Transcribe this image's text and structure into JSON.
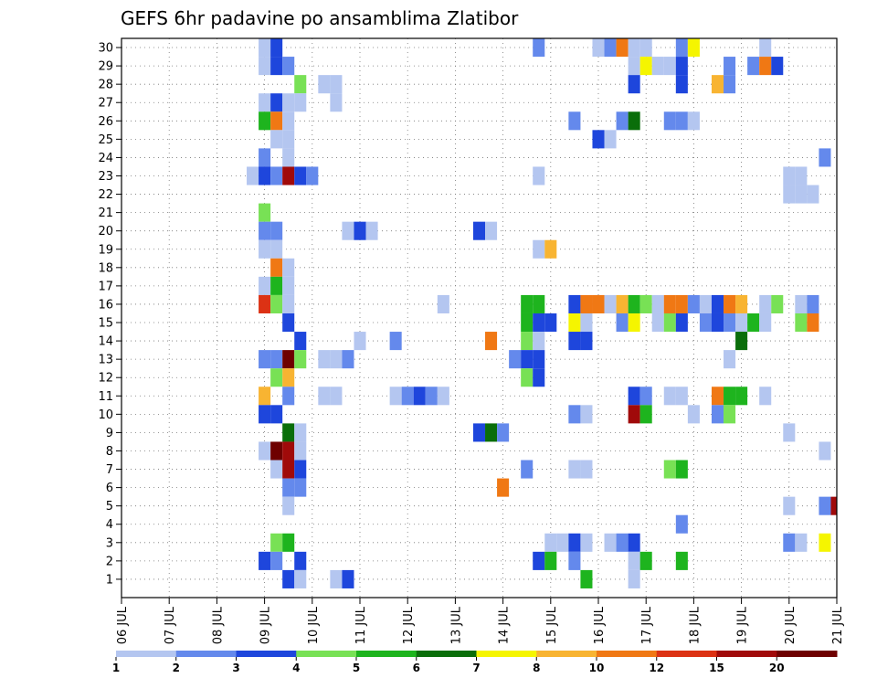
{
  "chart_data": {
    "type": "heatmap",
    "title": "GEFS 6hr padavine po ansamblima Zlatibor",
    "xlabel": "",
    "ylabel": "",
    "x_tick_labels": [
      "06 JUL",
      "07 JUL",
      "08 JUL",
      "09 JUL",
      "10 JUL",
      "11 JUL",
      "12 JUL",
      "13 JUL",
      "14 JUL",
      "15 JUL",
      "16 JUL",
      "17 JUL",
      "18 JUL",
      "19 JUL",
      "20 JUL",
      "21 JUL"
    ],
    "y_tick_labels": [
      "1",
      "2",
      "3",
      "4",
      "5",
      "6",
      "7",
      "8",
      "9",
      "10",
      "11",
      "12",
      "13",
      "14",
      "15",
      "16",
      "17",
      "18",
      "19",
      "20",
      "21",
      "22",
      "23",
      "24",
      "25",
      "26",
      "27",
      "28",
      "29",
      "30"
    ],
    "xlim_steps": [
      0,
      60
    ],
    "ylim": [
      0,
      30.5
    ],
    "grid": "dotted",
    "colorbar": {
      "labels": [
        "1",
        "2",
        "3",
        "4",
        "5",
        "6",
        "7",
        "8",
        "10",
        "12",
        "15",
        "20"
      ],
      "colors": [
        "#b4c6f0",
        "#6489ec",
        "#1e46dc",
        "#78e155",
        "#1eb41e",
        "#0a6e0a",
        "#f5f500",
        "#f8b432",
        "#f07814",
        "#dc3214",
        "#a00a0a",
        "#6e0000"
      ]
    },
    "columns_note": "each cell: [member_row, six_hour_step_from_06JUL_00z, class_index 1-12]",
    "cells": [
      [
        30,
        12,
        1
      ],
      [
        30,
        13,
        3
      ],
      [
        30,
        35,
        2
      ],
      [
        30,
        40,
        1
      ],
      [
        30,
        41,
        2
      ],
      [
        30,
        42,
        9
      ],
      [
        30,
        43,
        1
      ],
      [
        30,
        44,
        1
      ],
      [
        30,
        47,
        2
      ],
      [
        30,
        48,
        7
      ],
      [
        30,
        54,
        1
      ],
      [
        29,
        12,
        1
      ],
      [
        29,
        13,
        3
      ],
      [
        29,
        14,
        2
      ],
      [
        29,
        43,
        1
      ],
      [
        29,
        44,
        7
      ],
      [
        29,
        45,
        1
      ],
      [
        29,
        46,
        1
      ],
      [
        29,
        47,
        3
      ],
      [
        29,
        51,
        2
      ],
      [
        29,
        53,
        2
      ],
      [
        29,
        54,
        9
      ],
      [
        29,
        55,
        3
      ],
      [
        28,
        15,
        4
      ],
      [
        28,
        17,
        1
      ],
      [
        28,
        18,
        1
      ],
      [
        28,
        43,
        3
      ],
      [
        28,
        47,
        3
      ],
      [
        28,
        50,
        8
      ],
      [
        28,
        51,
        2
      ],
      [
        27,
        12,
        1
      ],
      [
        27,
        13,
        3
      ],
      [
        27,
        14,
        1
      ],
      [
        27,
        15,
        1
      ],
      [
        27,
        18,
        1
      ],
      [
        26,
        12,
        5
      ],
      [
        26,
        13,
        9
      ],
      [
        26,
        14,
        1
      ],
      [
        26,
        38,
        2
      ],
      [
        26,
        42,
        2
      ],
      [
        26,
        43,
        6
      ],
      [
        26,
        46,
        2
      ],
      [
        26,
        47,
        2
      ],
      [
        26,
        48,
        1
      ],
      [
        25,
        13,
        1
      ],
      [
        25,
        14,
        1
      ],
      [
        25,
        40,
        3
      ],
      [
        25,
        41,
        1
      ],
      [
        24,
        12,
        2
      ],
      [
        24,
        14,
        1
      ],
      [
        24,
        59,
        2
      ],
      [
        23,
        11,
        1
      ],
      [
        23,
        12,
        3
      ],
      [
        23,
        13,
        2
      ],
      [
        23,
        14,
        11
      ],
      [
        23,
        15,
        3
      ],
      [
        23,
        16,
        2
      ],
      [
        23,
        35,
        1
      ],
      [
        23,
        56,
        1
      ],
      [
        23,
        57,
        1
      ],
      [
        22,
        56,
        1
      ],
      [
        22,
        57,
        1
      ],
      [
        22,
        58,
        1
      ],
      [
        21,
        12,
        4
      ],
      [
        20,
        12,
        2
      ],
      [
        20,
        13,
        2
      ],
      [
        20,
        19,
        1
      ],
      [
        20,
        20,
        3
      ],
      [
        20,
        21,
        1
      ],
      [
        20,
        30,
        3
      ],
      [
        20,
        31,
        1
      ],
      [
        19,
        12,
        1
      ],
      [
        19,
        13,
        1
      ],
      [
        19,
        35,
        1
      ],
      [
        19,
        36,
        8
      ],
      [
        18,
        13,
        9
      ],
      [
        18,
        14,
        1
      ],
      [
        17,
        12,
        1
      ],
      [
        17,
        13,
        5
      ],
      [
        17,
        14,
        1
      ],
      [
        16,
        12,
        10
      ],
      [
        16,
        13,
        4
      ],
      [
        16,
        14,
        1
      ],
      [
        16,
        27,
        1
      ],
      [
        16,
        34,
        5
      ],
      [
        16,
        35,
        5
      ],
      [
        16,
        38,
        3
      ],
      [
        16,
        39,
        9
      ],
      [
        16,
        40,
        9
      ],
      [
        16,
        41,
        1
      ],
      [
        16,
        42,
        8
      ],
      [
        16,
        43,
        5
      ],
      [
        16,
        44,
        4
      ],
      [
        16,
        45,
        1
      ],
      [
        16,
        46,
        9
      ],
      [
        16,
        47,
        9
      ],
      [
        16,
        48,
        2
      ],
      [
        16,
        49,
        1
      ],
      [
        16,
        50,
        3
      ],
      [
        16,
        51,
        9
      ],
      [
        16,
        52,
        8
      ],
      [
        16,
        54,
        1
      ],
      [
        16,
        55,
        4
      ],
      [
        16,
        57,
        1
      ],
      [
        16,
        58,
        2
      ],
      [
        15,
        14,
        3
      ],
      [
        15,
        34,
        5
      ],
      [
        15,
        35,
        3
      ],
      [
        15,
        36,
        3
      ],
      [
        15,
        38,
        7
      ],
      [
        15,
        39,
        1
      ],
      [
        15,
        42,
        2
      ],
      [
        15,
        43,
        7
      ],
      [
        15,
        45,
        1
      ],
      [
        15,
        46,
        4
      ],
      [
        15,
        47,
        3
      ],
      [
        15,
        49,
        2
      ],
      [
        15,
        50,
        3
      ],
      [
        15,
        51,
        2
      ],
      [
        15,
        52,
        1
      ],
      [
        15,
        53,
        5
      ],
      [
        15,
        54,
        1
      ],
      [
        15,
        57,
        4
      ],
      [
        15,
        58,
        9
      ],
      [
        14,
        15,
        3
      ],
      [
        14,
        20,
        1
      ],
      [
        14,
        23,
        2
      ],
      [
        14,
        31,
        9
      ],
      [
        14,
        34,
        4
      ],
      [
        14,
        35,
        1
      ],
      [
        14,
        38,
        3
      ],
      [
        14,
        39,
        3
      ],
      [
        14,
        52,
        6
      ],
      [
        13,
        12,
        2
      ],
      [
        13,
        13,
        2
      ],
      [
        13,
        14,
        12
      ],
      [
        13,
        15,
        4
      ],
      [
        13,
        17,
        1
      ],
      [
        13,
        18,
        1
      ],
      [
        13,
        19,
        2
      ],
      [
        13,
        33,
        2
      ],
      [
        13,
        34,
        3
      ],
      [
        13,
        35,
        3
      ],
      [
        13,
        51,
        1
      ],
      [
        12,
        13,
        4
      ],
      [
        12,
        14,
        8
      ],
      [
        12,
        34,
        4
      ],
      [
        12,
        35,
        3
      ],
      [
        11,
        12,
        8
      ],
      [
        11,
        14,
        2
      ],
      [
        11,
        17,
        1
      ],
      [
        11,
        18,
        1
      ],
      [
        11,
        23,
        1
      ],
      [
        11,
        24,
        2
      ],
      [
        11,
        25,
        3
      ],
      [
        11,
        26,
        2
      ],
      [
        11,
        27,
        1
      ],
      [
        11,
        43,
        3
      ],
      [
        11,
        44,
        2
      ],
      [
        11,
        46,
        1
      ],
      [
        11,
        47,
        1
      ],
      [
        11,
        50,
        9
      ],
      [
        11,
        51,
        5
      ],
      [
        11,
        52,
        5
      ],
      [
        11,
        54,
        1
      ],
      [
        10,
        12,
        3
      ],
      [
        10,
        13,
        3
      ],
      [
        10,
        38,
        2
      ],
      [
        10,
        39,
        1
      ],
      [
        10,
        43,
        11
      ],
      [
        10,
        44,
        5
      ],
      [
        10,
        48,
        1
      ],
      [
        10,
        50,
        2
      ],
      [
        10,
        51,
        4
      ],
      [
        9,
        14,
        6
      ],
      [
        9,
        15,
        1
      ],
      [
        9,
        30,
        3
      ],
      [
        9,
        31,
        6
      ],
      [
        9,
        32,
        2
      ],
      [
        9,
        56,
        1
      ],
      [
        8,
        12,
        1
      ],
      [
        8,
        13,
        12
      ],
      [
        8,
        14,
        11
      ],
      [
        8,
        15,
        1
      ],
      [
        8,
        59,
        1
      ],
      [
        7,
        13,
        1
      ],
      [
        7,
        14,
        11
      ],
      [
        7,
        15,
        3
      ],
      [
        7,
        34,
        2
      ],
      [
        7,
        38,
        1
      ],
      [
        7,
        39,
        1
      ],
      [
        7,
        46,
        4
      ],
      [
        7,
        47,
        5
      ],
      [
        6,
        14,
        2
      ],
      [
        6,
        15,
        2
      ],
      [
        6,
        32,
        9
      ],
      [
        5,
        14,
        1
      ],
      [
        5,
        56,
        1
      ],
      [
        5,
        59,
        2
      ],
      [
        5,
        60,
        11
      ],
      [
        4,
        47,
        2
      ],
      [
        3,
        13,
        4
      ],
      [
        3,
        14,
        5
      ],
      [
        3,
        36,
        1
      ],
      [
        3,
        37,
        1
      ],
      [
        3,
        38,
        3
      ],
      [
        3,
        39,
        1
      ],
      [
        3,
        41,
        1
      ],
      [
        3,
        42,
        2
      ],
      [
        3,
        43,
        3
      ],
      [
        3,
        56,
        2
      ],
      [
        3,
        57,
        1
      ],
      [
        3,
        59,
        7
      ],
      [
        2,
        12,
        3
      ],
      [
        2,
        13,
        2
      ],
      [
        2,
        15,
        3
      ],
      [
        2,
        35,
        3
      ],
      [
        2,
        36,
        5
      ],
      [
        2,
        38,
        2
      ],
      [
        2,
        43,
        1
      ],
      [
        2,
        44,
        5
      ],
      [
        2,
        47,
        5
      ],
      [
        1,
        14,
        3
      ],
      [
        1,
        15,
        1
      ],
      [
        1,
        18,
        1
      ],
      [
        1,
        19,
        3
      ],
      [
        1,
        39,
        5
      ],
      [
        1,
        43,
        1
      ]
    ]
  }
}
